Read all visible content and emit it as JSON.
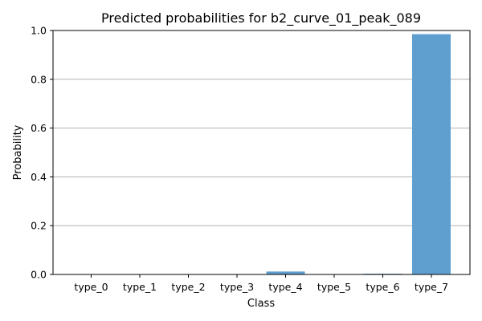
{
  "chart_data": {
    "type": "bar",
    "title": "Predicted probabilities for b2_curve_01_peak_089",
    "xlabel": "Class",
    "ylabel": "Probability",
    "categories": [
      "type_0",
      "type_1",
      "type_2",
      "type_3",
      "type_4",
      "type_5",
      "type_6",
      "type_7"
    ],
    "values": [
      0.0005,
      0.0005,
      0.0005,
      0.0005,
      0.012,
      0.0005,
      0.003,
      0.985
    ],
    "ylim": [
      0,
      1.0
    ],
    "yticks": [
      0.0,
      0.2,
      0.4,
      0.6,
      0.8,
      1.0
    ],
    "ytick_labels": [
      "0.0",
      "0.2",
      "0.4",
      "0.6",
      "0.8",
      "1.0"
    ],
    "grid": "y",
    "bar_color": "#5f9fcf"
  }
}
